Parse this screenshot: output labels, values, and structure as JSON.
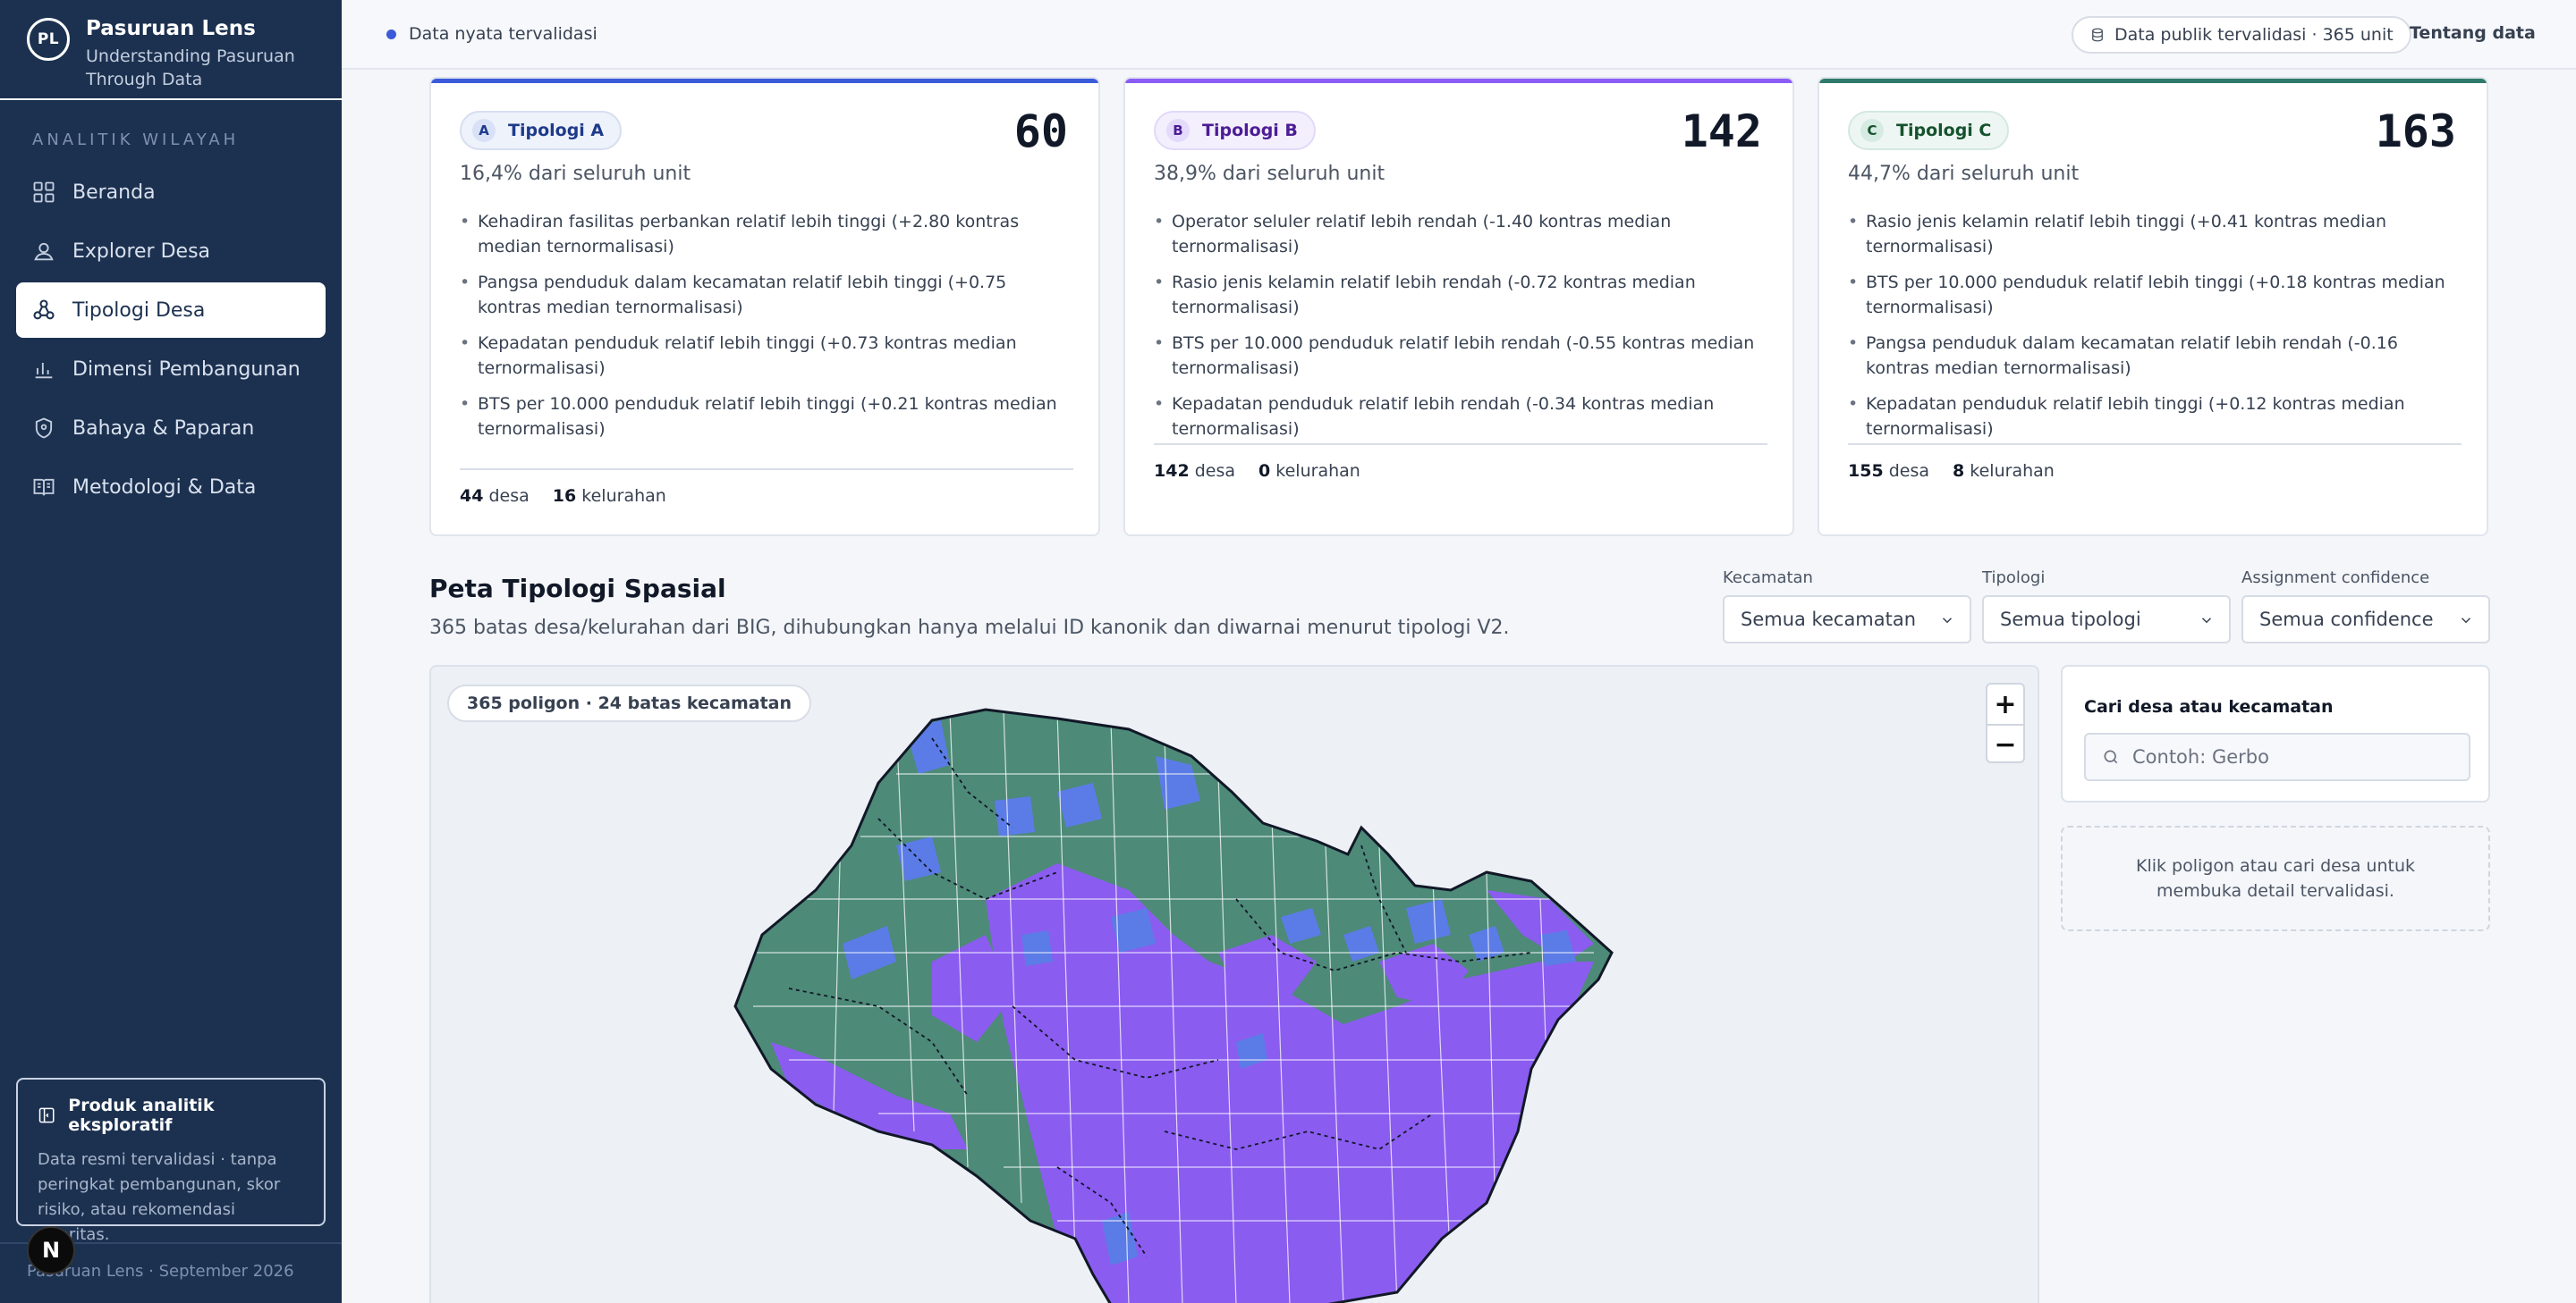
{
  "brand": {
    "title": "Pasuruan Lens",
    "subtitle": "Understanding Pasuruan Through Data",
    "logo_text": "PL"
  },
  "sidebar": {
    "section_label": "ANALITIK WILAYAH",
    "items": [
      {
        "label": "Beranda",
        "icon": "grid-icon"
      },
      {
        "label": "Explorer Desa",
        "icon": "user-icon"
      },
      {
        "label": "Tipologi Desa",
        "icon": "network-icon",
        "active": true
      },
      {
        "label": "Dimensi Pembangunan",
        "icon": "bar-chart-icon"
      },
      {
        "label": "Bahaya & Paparan",
        "icon": "shield-icon"
      },
      {
        "label": "Metodologi & Data",
        "icon": "book-icon"
      }
    ],
    "info_card": {
      "title": "Produk analitik eksploratif",
      "text": "Data resmi tervalidasi · tanpa peringkat pembangunan, skor risiko, atau rekomendasi prioritas."
    },
    "footer": "Pasuruan Lens · September 2026",
    "dev_badge": "N"
  },
  "topbar": {
    "status": "Data nyata tervalidasi",
    "pill": "Data publik tervalidasi · 365 unit",
    "about": "Tentang data"
  },
  "cards": [
    {
      "letter": "A",
      "name": "Tipologi A",
      "count": "60",
      "share": "16,4% dari seluruh unit",
      "accent": "#3b5bdb",
      "bullets": [
        "Kehadiran fasilitas perbankan relatif lebih tinggi (+2.80 kontras median ternormalisasi)",
        "Pangsa penduduk dalam kecamatan relatif lebih tinggi (+0.75 kontras median ternormalisasi)",
        "Kepadatan penduduk relatif lebih tinggi (+0.73 kontras median ternormalisasi)",
        "BTS per 10.000 penduduk relatif lebih tinggi (+0.21 kontras median ternormalisasi)"
      ],
      "desa_count": "44",
      "desa_label": "desa",
      "kel_count": "16",
      "kel_label": "kelurahan"
    },
    {
      "letter": "B",
      "name": "Tipologi B",
      "count": "142",
      "share": "38,9% dari seluruh unit",
      "accent": "#8b5cf6",
      "bullets": [
        "Operator seluler relatif lebih rendah (-1.40 kontras median ternormalisasi)",
        "Rasio jenis kelamin relatif lebih rendah (-0.72 kontras median ternormalisasi)",
        "BTS per 10.000 penduduk relatif lebih rendah (-0.55 kontras median ternormalisasi)",
        "Kepadatan penduduk relatif lebih rendah (-0.34 kontras median ternormalisasi)"
      ],
      "desa_count": "142",
      "desa_label": "desa",
      "kel_count": "0",
      "kel_label": "kelurahan"
    },
    {
      "letter": "C",
      "name": "Tipologi C",
      "count": "163",
      "share": "44,7% dari seluruh unit",
      "accent": "#2f7a6a",
      "bullets": [
        "Rasio jenis kelamin relatif lebih tinggi (+0.41 kontras median ternormalisasi)",
        "BTS per 10.000 penduduk relatif lebih tinggi (+0.18 kontras median ternormalisasi)",
        "Pangsa penduduk dalam kecamatan relatif lebih rendah (-0.16 kontras median ternormalisasi)",
        "Kepadatan penduduk relatif lebih tinggi (+0.12 kontras median ternormalisasi)"
      ],
      "desa_count": "155",
      "desa_label": "desa",
      "kel_count": "8",
      "kel_label": "kelurahan"
    }
  ],
  "map_section": {
    "title": "Peta Tipologi Spasial",
    "subtitle": "365 batas desa/kelurahan dari BIG, dihubungkan hanya melalui ID kanonik dan diwarnai menurut tipologi V2.",
    "filters": [
      {
        "label": "Kecamatan",
        "value": "Semua kecamatan"
      },
      {
        "label": "Tipologi",
        "value": "Semua tipologi"
      },
      {
        "label": "Assignment confidence",
        "value": "Semua confidence"
      }
    ],
    "map_chip": "365 poligon · 24 batas kecamatan",
    "zoom_in": "+",
    "zoom_out": "−",
    "colors": {
      "typology_a": "#5b7ce6",
      "typology_b": "#8b5cf0",
      "typology_c": "#4d8a78"
    }
  },
  "search": {
    "label": "Cari desa atau kecamatan",
    "placeholder": "Contoh: Gerbo",
    "hint": "Klik poligon atau cari desa untuk membuka detail tervalidasi."
  }
}
